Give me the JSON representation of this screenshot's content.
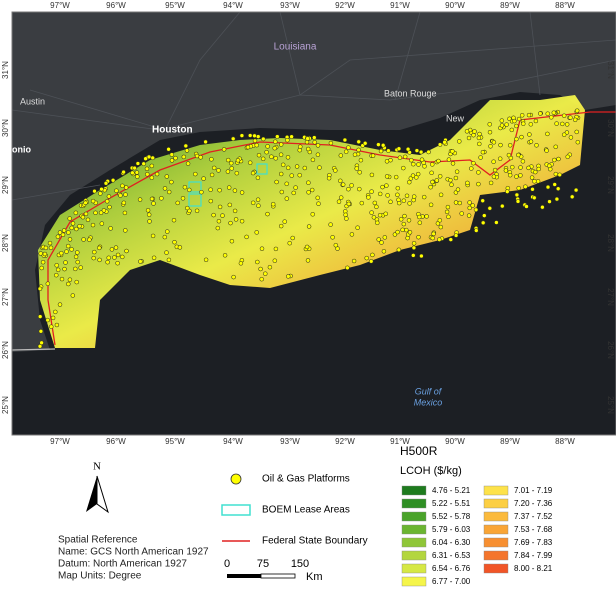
{
  "map": {
    "lon_labels": [
      "97°W",
      "96°W",
      "95°W",
      "94°W",
      "93°W",
      "92°W",
      "91°W",
      "90°W",
      "89°W",
      "88°W"
    ],
    "lat_labels": [
      "31°N",
      "30°N",
      "29°N",
      "28°N",
      "27°N",
      "26°N",
      "25°N"
    ],
    "places": [
      "Louisiana",
      "Austin",
      "Houston",
      "Baton Rouge",
      "New",
      "onio"
    ],
    "water_label": [
      "Gulf of",
      "Mexico"
    ]
  },
  "legend": {
    "title": "H500R",
    "subtitle": "LCOH ($/kg)",
    "classes": [
      {
        "label": "4.76 - 5.21",
        "color": "#1e7b1e"
      },
      {
        "label": "5.22 - 5.51",
        "color": "#2f8f24"
      },
      {
        "label": "5.52 - 5.78",
        "color": "#4aa32a"
      },
      {
        "label": "5.79 - 6.03",
        "color": "#6bb531"
      },
      {
        "label": "6.04 - 6.30",
        "color": "#8fc638"
      },
      {
        "label": "6.31 - 6.53",
        "color": "#b3d63e"
      },
      {
        "label": "6.54 - 6.76",
        "color": "#d6e844"
      },
      {
        "label": "6.77 - 7.00",
        "color": "#f5f54a"
      },
      {
        "label": "7.01 - 7.19",
        "color": "#fde24a"
      },
      {
        "label": "7.20 - 7.36",
        "color": "#fccf43"
      },
      {
        "label": "7.37 - 7.52",
        "color": "#fbba3c"
      },
      {
        "label": "7.53 - 7.68",
        "color": "#f9a536"
      },
      {
        "label": "7.69 - 7.83",
        "color": "#f78f31"
      },
      {
        "label": "7.84 - 7.99",
        "color": "#f4752c"
      },
      {
        "label": "8.00 - 8.21",
        "color": "#f15527"
      }
    ],
    "platforms": "Oil & Gas Platforms",
    "lease_areas": "BOEM Lease Areas",
    "boundary": "Federal State Boundary",
    "north": "N",
    "scale": [
      "0",
      "75",
      "150",
      "Km"
    ],
    "spatial_reference": [
      "Spatial Reference",
      "Name: GCS North American 1927",
      "Datum: North American 1927",
      "Map Units: Degree"
    ]
  }
}
